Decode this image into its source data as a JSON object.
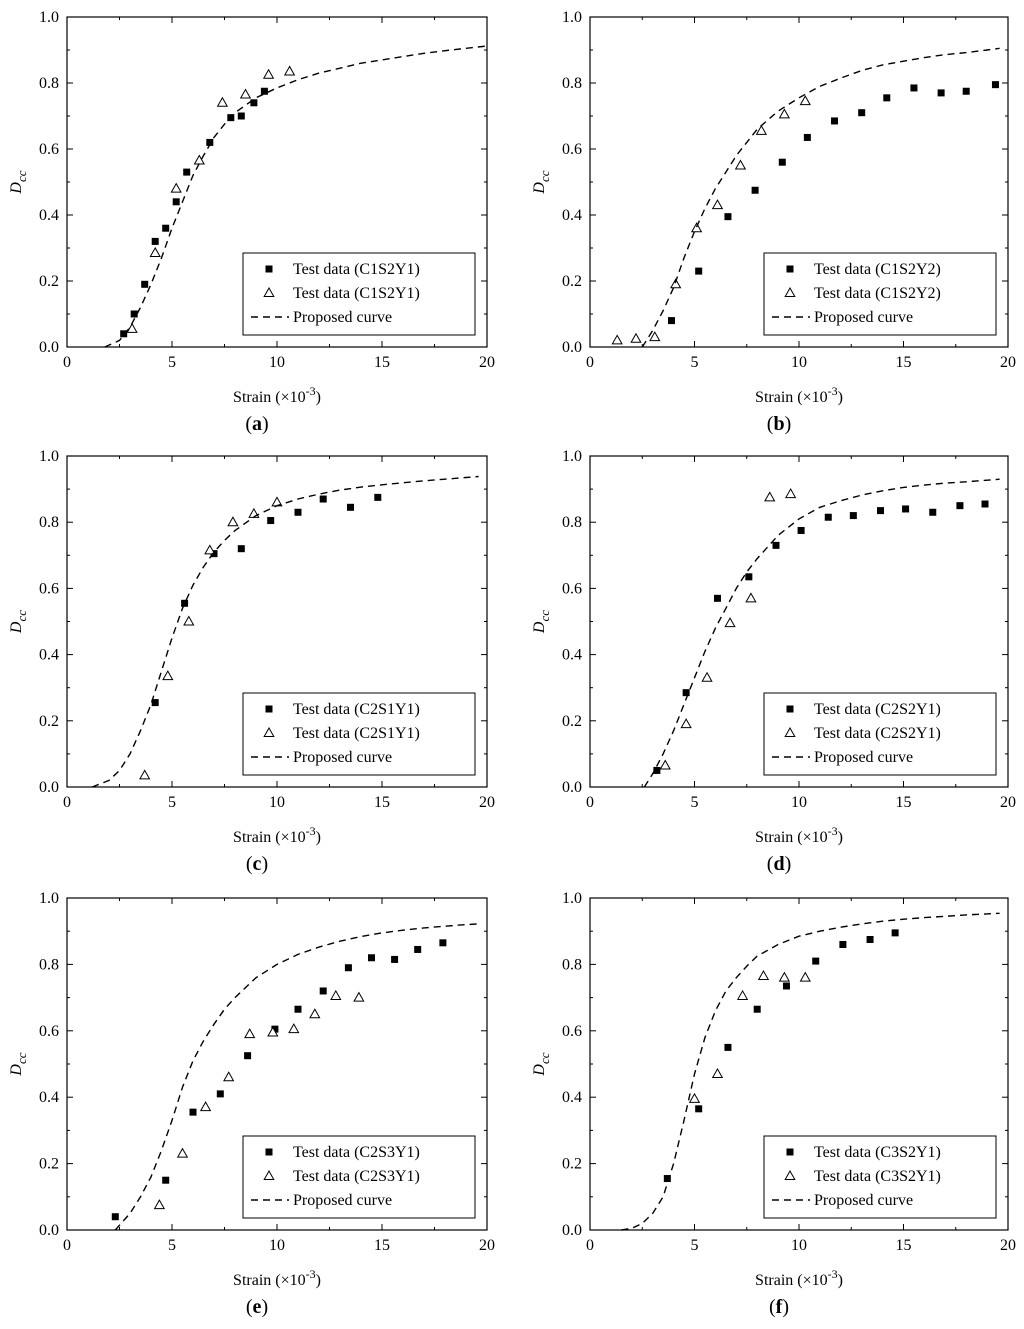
{
  "chart_data": [
    {
      "id": "a",
      "type": "scatter",
      "panel_label": "a",
      "xlabel": "Strain (×10",
      "xlabel_exp": "-3",
      "xlabel_close": ")",
      "ylabel": "D",
      "ylabel_sub": "cc",
      "xlim": [
        0,
        20
      ],
      "ylim": [
        0,
        1.0
      ],
      "xticks": [
        "0",
        "5",
        "10",
        "15",
        "20"
      ],
      "yticks": [
        "0.0",
        "0.2",
        "0.4",
        "0.6",
        "0.8",
        "1.0"
      ],
      "legend_position": "bottom-right",
      "series": [
        {
          "name": "Test data (C1S2Y1)",
          "marker": "square-filled",
          "x": [
            2.7,
            3.2,
            3.7,
            4.2,
            4.7,
            5.2,
            5.7,
            6.8,
            7.8,
            8.3,
            8.9,
            9.4
          ],
          "y": [
            0.04,
            0.1,
            0.19,
            0.32,
            0.36,
            0.44,
            0.53,
            0.62,
            0.695,
            0.7,
            0.74,
            0.775
          ]
        },
        {
          "name": "Test data (C1S2Y1)",
          "marker": "triangle-open",
          "x": [
            3.1,
            4.2,
            5.2,
            6.3,
            7.4,
            8.5,
            9.6,
            10.6
          ],
          "y": [
            0.055,
            0.285,
            0.48,
            0.565,
            0.74,
            0.765,
            0.825,
            0.835
          ]
        },
        {
          "name": "Proposed curve",
          "style": "dashed",
          "x": [
            1.8,
            2.5,
            3,
            3.5,
            4,
            4.5,
            5,
            5.5,
            6,
            6.5,
            7,
            7.5,
            8,
            9,
            10,
            11,
            12,
            13,
            14,
            15,
            16,
            17,
            18,
            19,
            20
          ],
          "y": [
            0.0,
            0.02,
            0.06,
            0.12,
            0.19,
            0.27,
            0.36,
            0.44,
            0.52,
            0.58,
            0.635,
            0.675,
            0.71,
            0.755,
            0.785,
            0.81,
            0.83,
            0.845,
            0.86,
            0.87,
            0.88,
            0.89,
            0.898,
            0.905,
            0.912
          ]
        }
      ]
    },
    {
      "id": "b",
      "type": "scatter",
      "panel_label": "b",
      "xlabel": "Strain (×10",
      "xlabel_exp": "-3",
      "xlabel_close": ")",
      "ylabel": "D",
      "ylabel_sub": "cc",
      "xlim": [
        0,
        20
      ],
      "ylim": [
        0,
        1.0
      ],
      "xticks": [
        "0",
        "5",
        "10",
        "15",
        "20"
      ],
      "yticks": [
        "0.0",
        "0.2",
        "0.4",
        "0.6",
        "0.8",
        "1.0"
      ],
      "legend_position": "bottom-right",
      "series": [
        {
          "name": "Test data (C1S2Y2)",
          "marker": "square-filled",
          "x": [
            3.9,
            5.2,
            6.6,
            7.9,
            9.2,
            10.4,
            11.7,
            13.0,
            14.2,
            15.5,
            16.8,
            18.0,
            19.4
          ],
          "y": [
            0.08,
            0.23,
            0.395,
            0.475,
            0.56,
            0.635,
            0.685,
            0.71,
            0.755,
            0.785,
            0.77,
            0.775,
            0.795
          ]
        },
        {
          "name": "Test data (C1S2Y2)",
          "marker": "triangle-open",
          "x": [
            1.3,
            2.2,
            3.1,
            4.1,
            5.1,
            6.1,
            7.2,
            8.2,
            9.3,
            10.3
          ],
          "y": [
            0.02,
            0.025,
            0.03,
            0.19,
            0.36,
            0.43,
            0.55,
            0.655,
            0.705,
            0.745
          ]
        },
        {
          "name": "Proposed curve",
          "style": "dashed",
          "x": [
            2.5,
            3,
            3.5,
            4,
            4.5,
            5,
            5.5,
            6,
            6.5,
            7,
            7.5,
            8,
            9,
            10,
            11,
            12,
            13,
            14,
            15,
            16,
            17,
            18,
            19,
            19.6
          ],
          "y": [
            0.0,
            0.05,
            0.11,
            0.18,
            0.27,
            0.35,
            0.42,
            0.48,
            0.53,
            0.58,
            0.62,
            0.66,
            0.715,
            0.755,
            0.79,
            0.815,
            0.838,
            0.855,
            0.866,
            0.877,
            0.886,
            0.892,
            0.9,
            0.905
          ]
        }
      ]
    },
    {
      "id": "c",
      "type": "scatter",
      "panel_label": "c",
      "xlabel": "Strain (×10",
      "xlabel_exp": "-3",
      "xlabel_close": ")",
      "ylabel": "D",
      "ylabel_sub": "cc",
      "xlim": [
        0,
        20
      ],
      "ylim": [
        0,
        1.0
      ],
      "xticks": [
        "0",
        "5",
        "10",
        "15",
        "20"
      ],
      "yticks": [
        "0.0",
        "0.2",
        "0.4",
        "0.6",
        "0.8",
        "1.0"
      ],
      "legend_position": "bottom-right",
      "series": [
        {
          "name": "Test data (C2S1Y1)",
          "marker": "square-filled",
          "x": [
            4.2,
            5.6,
            7.0,
            8.3,
            9.7,
            11.0,
            12.2,
            13.5,
            14.8
          ],
          "y": [
            0.255,
            0.555,
            0.705,
            0.72,
            0.805,
            0.83,
            0.87,
            0.845,
            0.875
          ]
        },
        {
          "name": "Test data (C2S1Y1)",
          "marker": "triangle-open",
          "x": [
            3.7,
            4.8,
            5.8,
            6.8,
            7.9,
            8.9,
            10.0
          ],
          "y": [
            0.035,
            0.335,
            0.5,
            0.715,
            0.8,
            0.825,
            0.86
          ]
        },
        {
          "name": "Proposed curve",
          "style": "dashed",
          "x": [
            1.2,
            2,
            2.5,
            3,
            3.5,
            4,
            4.5,
            5,
            5.5,
            6,
            6.5,
            7,
            7.5,
            8,
            9,
            10,
            11,
            12,
            13,
            14,
            15,
            16,
            17,
            18,
            19,
            19.6
          ],
          "y": [
            0.0,
            0.02,
            0.05,
            0.1,
            0.17,
            0.25,
            0.35,
            0.45,
            0.54,
            0.61,
            0.665,
            0.71,
            0.745,
            0.775,
            0.82,
            0.85,
            0.87,
            0.885,
            0.897,
            0.906,
            0.913,
            0.919,
            0.925,
            0.93,
            0.935,
            0.938
          ]
        }
      ]
    },
    {
      "id": "d",
      "type": "scatter",
      "panel_label": "d",
      "xlabel": "Strain (×10",
      "xlabel_exp": "-3",
      "xlabel_close": ")",
      "ylabel": "D",
      "ylabel_sub": "cc",
      "xlim": [
        0,
        20
      ],
      "ylim": [
        0,
        1.0
      ],
      "xticks": [
        "0",
        "5",
        "10",
        "15",
        "20"
      ],
      "yticks": [
        "0.0",
        "0.2",
        "0.4",
        "0.6",
        "0.8",
        "1.0"
      ],
      "legend_position": "bottom-right",
      "series": [
        {
          "name": "Test data (C2S2Y1)",
          "marker": "square-filled",
          "x": [
            3.2,
            4.6,
            6.1,
            7.6,
            8.9,
            10.1,
            11.4,
            12.6,
            13.9,
            15.1,
            16.4,
            17.7,
            18.9
          ],
          "y": [
            0.05,
            0.285,
            0.57,
            0.635,
            0.73,
            0.775,
            0.815,
            0.82,
            0.835,
            0.84,
            0.83,
            0.85,
            0.855
          ]
        },
        {
          "name": "Test data (C2S2Y1)",
          "marker": "triangle-open",
          "x": [
            3.6,
            4.6,
            5.6,
            6.7,
            7.7,
            8.6,
            9.6
          ],
          "y": [
            0.065,
            0.19,
            0.33,
            0.495,
            0.57,
            0.875,
            0.885
          ]
        },
        {
          "name": "Proposed curve",
          "style": "dashed",
          "x": [
            2.6,
            3,
            3.5,
            4,
            4.5,
            5,
            5.5,
            6,
            6.5,
            7,
            7.5,
            8,
            9,
            10,
            11,
            12,
            13,
            14,
            15,
            16,
            17,
            18,
            19,
            19.6
          ],
          "y": [
            0.0,
            0.04,
            0.1,
            0.17,
            0.25,
            0.33,
            0.41,
            0.48,
            0.54,
            0.6,
            0.65,
            0.69,
            0.76,
            0.81,
            0.845,
            0.865,
            0.882,
            0.895,
            0.905,
            0.912,
            0.918,
            0.922,
            0.927,
            0.93
          ]
        }
      ]
    },
    {
      "id": "e",
      "type": "scatter",
      "panel_label": "e",
      "xlabel": "Strain (×10",
      "xlabel_exp": "-3",
      "xlabel_close": ")",
      "ylabel": "D",
      "ylabel_sub": "cc",
      "xlim": [
        0,
        20
      ],
      "ylim": [
        0,
        1.0
      ],
      "xticks": [
        "0",
        "5",
        "10",
        "15",
        "20"
      ],
      "yticks": [
        "0.0",
        "0.2",
        "0.4",
        "0.6",
        "0.8",
        "1.0"
      ],
      "legend_position": "bottom-right",
      "series": [
        {
          "name": "Test data (C2S3Y1)",
          "marker": "square-filled",
          "x": [
            2.3,
            4.7,
            6.0,
            7.3,
            8.6,
            9.9,
            11.0,
            12.2,
            13.4,
            14.5,
            15.6,
            16.7,
            17.9
          ],
          "y": [
            0.04,
            0.15,
            0.355,
            0.41,
            0.525,
            0.605,
            0.665,
            0.72,
            0.79,
            0.82,
            0.815,
            0.845,
            0.865
          ]
        },
        {
          "name": "Test data (C2S3Y1)",
          "marker": "triangle-open",
          "x": [
            4.4,
            5.5,
            6.6,
            7.7,
            8.7,
            9.8,
            10.8,
            11.8,
            12.8,
            13.9
          ],
          "y": [
            0.075,
            0.23,
            0.37,
            0.46,
            0.59,
            0.595,
            0.605,
            0.65,
            0.705,
            0.7
          ]
        },
        {
          "name": "Proposed curve",
          "style": "dashed",
          "x": [
            2.3,
            3,
            3.5,
            4,
            4.5,
            5,
            5.5,
            6,
            6.5,
            7,
            7.5,
            8,
            9,
            10,
            11,
            12,
            13,
            14,
            15,
            16,
            17,
            18,
            19,
            19.6
          ],
          "y": [
            0.0,
            0.05,
            0.1,
            0.16,
            0.24,
            0.33,
            0.43,
            0.51,
            0.57,
            0.62,
            0.665,
            0.7,
            0.76,
            0.8,
            0.83,
            0.852,
            0.87,
            0.884,
            0.895,
            0.903,
            0.91,
            0.915,
            0.92,
            0.922
          ]
        }
      ]
    },
    {
      "id": "f",
      "type": "scatter",
      "panel_label": "f",
      "xlabel": "Strain (×10",
      "xlabel_exp": "-3",
      "xlabel_close": ")",
      "ylabel": "D",
      "ylabel_sub": "cc",
      "xlim": [
        0,
        20
      ],
      "ylim": [
        0,
        1.0
      ],
      "xticks": [
        "0",
        "5",
        "10",
        "15",
        "20"
      ],
      "yticks": [
        "0.0",
        "0.2",
        "0.4",
        "0.6",
        "0.8",
        "1.0"
      ],
      "legend_position": "bottom-right",
      "series": [
        {
          "name": "Test data (C3S2Y1)",
          "marker": "square-filled",
          "x": [
            3.7,
            5.2,
            6.6,
            8.0,
            9.4,
            10.8,
            12.1,
            13.4,
            14.6
          ],
          "y": [
            0.155,
            0.365,
            0.55,
            0.665,
            0.735,
            0.81,
            0.86,
            0.875,
            0.895
          ]
        },
        {
          "name": "Test data (C3S2Y1)",
          "marker": "triangle-open",
          "x": [
            5.0,
            6.1,
            7.3,
            8.3,
            9.3,
            10.3
          ],
          "y": [
            0.395,
            0.47,
            0.705,
            0.765,
            0.76,
            0.76
          ]
        },
        {
          "name": "Proposed curve",
          "style": "dashed",
          "x": [
            1.5,
            2,
            2.5,
            3,
            3.5,
            4,
            4.5,
            5,
            5.5,
            6,
            6.5,
            7,
            7.5,
            8,
            9,
            10,
            11,
            12,
            13,
            14,
            15,
            16,
            17,
            18,
            19,
            19.6
          ],
          "y": [
            0.0,
            0.005,
            0.02,
            0.05,
            0.1,
            0.2,
            0.33,
            0.47,
            0.58,
            0.66,
            0.72,
            0.76,
            0.795,
            0.825,
            0.86,
            0.885,
            0.9,
            0.912,
            0.922,
            0.93,
            0.936,
            0.941,
            0.945,
            0.949,
            0.952,
            0.954
          ]
        }
      ]
    }
  ]
}
